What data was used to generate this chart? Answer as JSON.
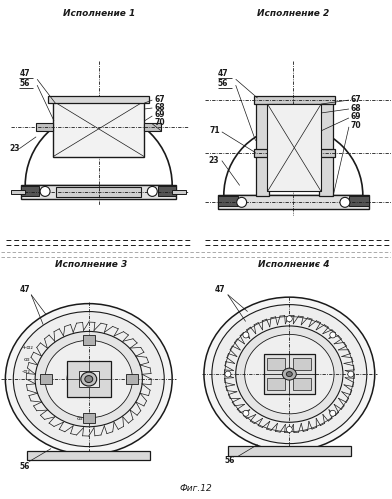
{
  "title": "Фиг.12",
  "bg_color": "#ffffff",
  "line_color": "#1a1a1a",
  "text_color": "#1a1a1a",
  "label1": "Исполнение 1",
  "label2": "Исполнение 2",
  "label3": "Исполнение 3",
  "label4": "Исполнениє 4"
}
